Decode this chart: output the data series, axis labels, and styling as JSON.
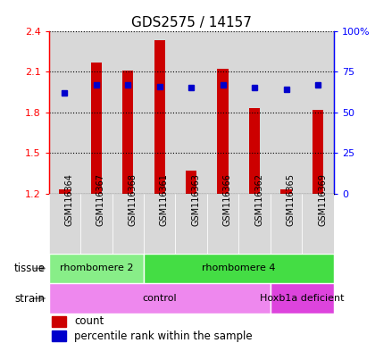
{
  "title": "GDS2575 / 14157",
  "samples": [
    "GSM116364",
    "GSM116367",
    "GSM116368",
    "GSM116361",
    "GSM116363",
    "GSM116366",
    "GSM116362",
    "GSM116365",
    "GSM116369"
  ],
  "count_values": [
    1.23,
    2.17,
    2.11,
    2.33,
    1.37,
    2.12,
    1.83,
    1.23,
    1.82
  ],
  "percentile_values": [
    62,
    67,
    67,
    66,
    65,
    67,
    65,
    64,
    67
  ],
  "ylim_left": [
    1.2,
    2.4
  ],
  "ylim_right": [
    0,
    100
  ],
  "yticks_left": [
    1.2,
    1.5,
    1.8,
    2.1,
    2.4
  ],
  "yticks_right": [
    0,
    25,
    50,
    75,
    100
  ],
  "ytick_labels_left": [
    "1.2",
    "1.5",
    "1.8",
    "2.1",
    "2.4"
  ],
  "ytick_labels_right": [
    "0",
    "25",
    "50",
    "75",
    "100%"
  ],
  "bar_color": "#cc0000",
  "dot_color": "#0000cc",
  "tissue_groups": [
    {
      "label": "rhombomere 2",
      "start": 0,
      "end": 3,
      "color": "#88ee88"
    },
    {
      "label": "rhombomere 4",
      "start": 3,
      "end": 9,
      "color": "#44dd44"
    }
  ],
  "strain_groups": [
    {
      "label": "control",
      "start": 0,
      "end": 7,
      "color": "#ee88ee"
    },
    {
      "label": "Hoxb1a deficient",
      "start": 7,
      "end": 9,
      "color": "#dd44dd"
    }
  ],
  "tissue_label": "tissue",
  "strain_label": "strain",
  "legend_count": "count",
  "legend_percentile": "percentile rank within the sample",
  "bar_width": 0.35,
  "bg_color": "#ffffff",
  "title_fontsize": 11,
  "tick_fontsize": 8,
  "sample_fontsize": 7
}
